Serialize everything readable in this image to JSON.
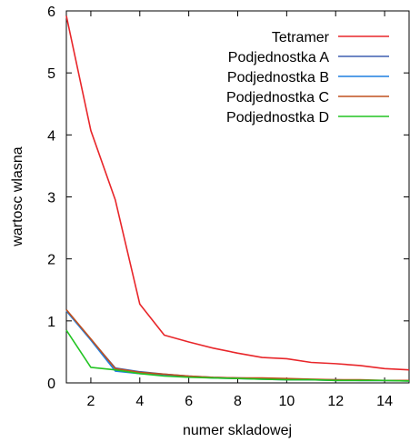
{
  "chart_data": {
    "type": "line",
    "title": "",
    "xlabel": "numer skladowej",
    "ylabel": "wartosc wlasna",
    "xlim": [
      1,
      15
    ],
    "ylim": [
      0,
      6
    ],
    "xticks": [
      2,
      4,
      6,
      8,
      10,
      12,
      14
    ],
    "yticks": [
      0,
      1,
      2,
      3,
      4,
      5,
      6
    ],
    "grid": false,
    "legend_position": "top-right",
    "x": [
      1,
      2,
      3,
      4,
      5,
      6,
      7,
      8,
      9,
      10,
      11,
      12,
      13,
      14,
      15
    ],
    "series": [
      {
        "name": "Tetramer",
        "color": "#e8262a",
        "values": [
          5.92,
          4.07,
          2.95,
          1.27,
          0.77,
          0.66,
          0.56,
          0.48,
          0.41,
          0.39,
          0.33,
          0.31,
          0.28,
          0.23,
          0.21
        ]
      },
      {
        "name": "Podjednostka A",
        "color": "#3f5fb0",
        "values": [
          1.17,
          0.7,
          0.24,
          0.18,
          0.14,
          0.11,
          0.09,
          0.08,
          0.07,
          0.06,
          0.05,
          0.05,
          0.04,
          0.04,
          0.04
        ]
      },
      {
        "name": "Podjednostka B",
        "color": "#1e7fe0",
        "values": [
          1.16,
          0.69,
          0.19,
          0.15,
          0.13,
          0.1,
          0.08,
          0.07,
          0.06,
          0.05,
          0.05,
          0.04,
          0.04,
          0.04,
          0.03
        ]
      },
      {
        "name": "Podjednostka C",
        "color": "#c0501e",
        "values": [
          1.18,
          0.71,
          0.23,
          0.17,
          0.14,
          0.11,
          0.09,
          0.08,
          0.08,
          0.07,
          0.06,
          0.05,
          0.05,
          0.04,
          0.04
        ]
      },
      {
        "name": "Podjednostka D",
        "color": "#22c422",
        "values": [
          0.85,
          0.25,
          0.21,
          0.15,
          0.11,
          0.09,
          0.08,
          0.07,
          0.06,
          0.05,
          0.05,
          0.04,
          0.04,
          0.04,
          0.03
        ]
      }
    ]
  }
}
